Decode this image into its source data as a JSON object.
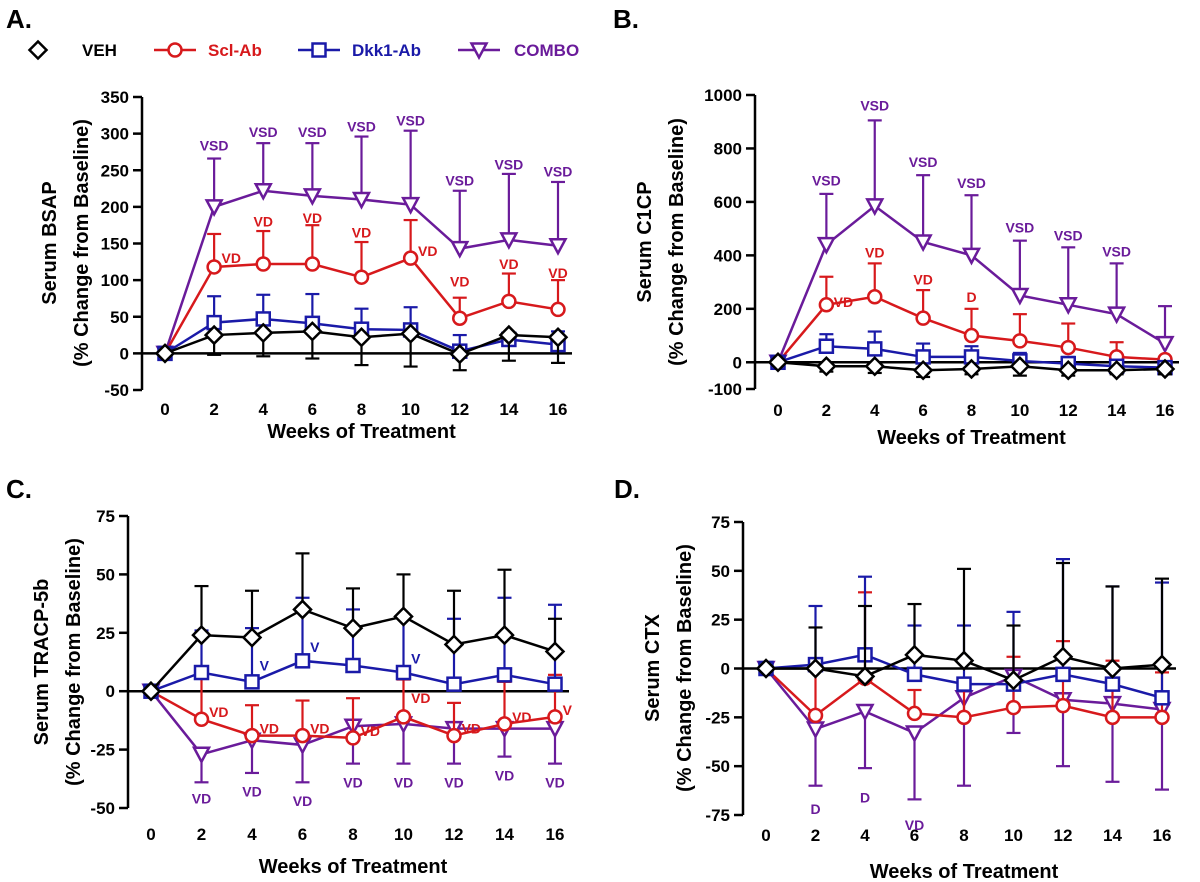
{
  "figure": {
    "legend": [
      {
        "name": "VEH",
        "color": "#000000",
        "marker": "diamond"
      },
      {
        "name": "Scl-Ab",
        "color": "#d7191c",
        "marker": "circle"
      },
      {
        "name": "Dkk1-Ab",
        "color": "#1a1aa8",
        "marker": "square"
      },
      {
        "name": "COMBO",
        "color": "#6a1b9a",
        "marker": "triangle-down"
      }
    ]
  },
  "chart_data": [
    {
      "id": "A",
      "panel_label": "A.",
      "type": "line",
      "xlabel": "Weeks of Treatment",
      "ylabel": [
        "Serum BSAP",
        "(% Change from Baseline)"
      ],
      "x": [
        0,
        2,
        4,
        6,
        8,
        10,
        12,
        14,
        16
      ],
      "ylim": [
        -50,
        350
      ],
      "yticks": [
        -50,
        0,
        50,
        100,
        150,
        200,
        250,
        300,
        350
      ],
      "series": [
        {
          "name": "VEH",
          "values": [
            0,
            25,
            28,
            30,
            22,
            27,
            -1,
            25,
            22
          ],
          "errors": [
            0,
            27,
            32,
            37,
            38,
            45,
            22,
            35,
            35
          ],
          "error_dir": "down"
        },
        {
          "name": "Scl-Ab",
          "values": [
            0,
            118,
            122,
            122,
            104,
            130,
            48,
            71,
            60
          ],
          "errors": [
            0,
            45,
            45,
            53,
            48,
            52,
            28,
            38,
            40
          ],
          "error_dir": "up"
        },
        {
          "name": "Dkk1-Ab",
          "values": [
            0,
            42,
            47,
            41,
            33,
            32,
            3,
            19,
            12
          ],
          "errors": [
            0,
            36,
            33,
            40,
            28,
            31,
            22,
            8,
            18
          ],
          "error_dir": "up"
        },
        {
          "name": "COMBO",
          "values": [
            0,
            200,
            222,
            215,
            210,
            203,
            143,
            155,
            147
          ],
          "errors": [
            0,
            66,
            65,
            72,
            86,
            101,
            79,
            90,
            87
          ],
          "error_dir": "up"
        }
      ],
      "annotations": [
        {
          "text": "VSD",
          "x": 2,
          "y": 284,
          "series": "COMBO",
          "align": "middle"
        },
        {
          "text": "VSD",
          "x": 4,
          "y": 302,
          "series": "COMBO",
          "align": "middle"
        },
        {
          "text": "VSD",
          "x": 6,
          "y": 302,
          "series": "COMBO",
          "align": "middle"
        },
        {
          "text": "VSD",
          "x": 8,
          "y": 310,
          "series": "COMBO",
          "align": "middle"
        },
        {
          "text": "VSD",
          "x": 10,
          "y": 318,
          "series": "COMBO",
          "align": "middle"
        },
        {
          "text": "VSD",
          "x": 12,
          "y": 236,
          "series": "COMBO",
          "align": "middle"
        },
        {
          "text": "VSD",
          "x": 14,
          "y": 258,
          "series": "COMBO",
          "align": "middle"
        },
        {
          "text": "VSD",
          "x": 16,
          "y": 248,
          "series": "COMBO",
          "align": "middle"
        },
        {
          "text": "VD",
          "x": 2.3,
          "y": 130,
          "series": "Scl-Ab",
          "align": "start"
        },
        {
          "text": "VD",
          "x": 4,
          "y": 180,
          "series": "Scl-Ab",
          "align": "middle"
        },
        {
          "text": "VD",
          "x": 6,
          "y": 185,
          "series": "Scl-Ab",
          "align": "middle"
        },
        {
          "text": "VD",
          "x": 8,
          "y": 165,
          "series": "Scl-Ab",
          "align": "middle"
        },
        {
          "text": "VD",
          "x": 10.3,
          "y": 140,
          "series": "Scl-Ab",
          "align": "start"
        },
        {
          "text": "VD",
          "x": 12,
          "y": 98,
          "series": "Scl-Ab",
          "align": "middle"
        },
        {
          "text": "VD",
          "x": 14,
          "y": 122,
          "series": "Scl-Ab",
          "align": "middle"
        },
        {
          "text": "VD",
          "x": 16,
          "y": 110,
          "series": "Scl-Ab",
          "align": "middle"
        }
      ]
    },
    {
      "id": "B",
      "panel_label": "B.",
      "type": "line",
      "xlabel": "Weeks of Treatment",
      "ylabel": [
        "Serum C1CP",
        "(% Change from Baseline)"
      ],
      "x": [
        0,
        2,
        4,
        6,
        8,
        10,
        12,
        14,
        16
      ],
      "ylim": [
        -100,
        1000
      ],
      "yticks": [
        -100,
        0,
        200,
        400,
        600,
        800,
        1000
      ],
      "series": [
        {
          "name": "VEH",
          "values": [
            0,
            -15,
            -15,
            -30,
            -25,
            -15,
            -30,
            -30,
            -25
          ],
          "errors": [
            0,
            20,
            25,
            25,
            20,
            35,
            20,
            15,
            20
          ],
          "error_dir": "down"
        },
        {
          "name": "Scl-Ab",
          "values": [
            0,
            215,
            245,
            165,
            100,
            80,
            55,
            20,
            10
          ],
          "errors": [
            0,
            105,
            125,
            105,
            100,
            100,
            90,
            55,
            0
          ],
          "error_dir": "up"
        },
        {
          "name": "Dkk1-Ab",
          "values": [
            0,
            60,
            50,
            20,
            20,
            5,
            -5,
            -15,
            -20
          ],
          "errors": [
            0,
            45,
            65,
            50,
            40,
            30,
            25,
            10,
            0
          ],
          "error_dir": "up"
        },
        {
          "name": "COMBO",
          "values": [
            0,
            440,
            585,
            450,
            400,
            250,
            215,
            180,
            70
          ],
          "errors": [
            0,
            190,
            320,
            250,
            225,
            205,
            215,
            190,
            140
          ],
          "error_dir": "up"
        }
      ],
      "annotations": [
        {
          "text": "VSD",
          "x": 2,
          "y": 680,
          "series": "COMBO",
          "align": "middle"
        },
        {
          "text": "VSD",
          "x": 4,
          "y": 960,
          "series": "COMBO",
          "align": "middle"
        },
        {
          "text": "VSD",
          "x": 6,
          "y": 750,
          "series": "COMBO",
          "align": "middle"
        },
        {
          "text": "VSD",
          "x": 8,
          "y": 670,
          "series": "COMBO",
          "align": "middle"
        },
        {
          "text": "VSD",
          "x": 10,
          "y": 505,
          "series": "COMBO",
          "align": "middle"
        },
        {
          "text": "VSD",
          "x": 12,
          "y": 475,
          "series": "COMBO",
          "align": "middle"
        },
        {
          "text": "VSD",
          "x": 14,
          "y": 415,
          "series": "COMBO",
          "align": "middle"
        },
        {
          "text": "VD",
          "x": 2.3,
          "y": 225,
          "series": "Scl-Ab",
          "align": "start"
        },
        {
          "text": "VD",
          "x": 4,
          "y": 410,
          "series": "Scl-Ab",
          "align": "middle"
        },
        {
          "text": "VD",
          "x": 6,
          "y": 310,
          "series": "Scl-Ab",
          "align": "middle"
        },
        {
          "text": "D",
          "x": 8,
          "y": 245,
          "series": "Scl-Ab",
          "align": "middle"
        }
      ]
    },
    {
      "id": "C",
      "panel_label": "C.",
      "type": "line",
      "xlabel": "Weeks of Treatment",
      "ylabel": [
        "Serum TRACP-5b",
        "(% Change from Baseline)"
      ],
      "x": [
        0,
        2,
        4,
        6,
        8,
        10,
        12,
        14,
        16
      ],
      "ylim": [
        -50,
        75
      ],
      "yticks": [
        -50,
        -25,
        0,
        25,
        50,
        75
      ],
      "series": [
        {
          "name": "VEH",
          "values": [
            0,
            24,
            23,
            35,
            27,
            32,
            20,
            24,
            17
          ],
          "errors": [
            0,
            21,
            20,
            24,
            17,
            18,
            23,
            28,
            14
          ],
          "error_dir": "up"
        },
        {
          "name": "Scl-Ab",
          "values": [
            0,
            -12,
            -19,
            -19,
            -20,
            -11,
            -19,
            -14,
            -11
          ],
          "errors": [
            0,
            20,
            13,
            15,
            17,
            16,
            14,
            18,
            18
          ],
          "error_dir": "up"
        },
        {
          "name": "Dkk1-Ab",
          "values": [
            0,
            8,
            4,
            13,
            11,
            8,
            3,
            7,
            3
          ],
          "errors": [
            0,
            18,
            23,
            27,
            24,
            23,
            28,
            33,
            34
          ],
          "error_dir": "up"
        },
        {
          "name": "COMBO",
          "values": [
            0,
            -27,
            -21,
            -23,
            -15,
            -14,
            -16,
            -16,
            -16
          ],
          "errors": [
            0,
            12,
            14,
            16,
            16,
            17,
            15,
            12,
            15
          ],
          "error_dir": "down"
        }
      ],
      "annotations": [
        {
          "text": "VD",
          "x": 2.3,
          "y": -9,
          "series": "Scl-Ab",
          "align": "start"
        },
        {
          "text": "VD",
          "x": 4.3,
          "y": -16,
          "series": "Scl-Ab",
          "align": "start"
        },
        {
          "text": "VD",
          "x": 6.3,
          "y": -16,
          "series": "Scl-Ab",
          "align": "start"
        },
        {
          "text": "VD",
          "x": 8.3,
          "y": -17,
          "series": "Scl-Ab",
          "align": "start"
        },
        {
          "text": "VD",
          "x": 10.3,
          "y": -3,
          "series": "Scl-Ab",
          "align": "start"
        },
        {
          "text": "VD",
          "x": 12.3,
          "y": -16,
          "series": "Scl-Ab",
          "align": "start"
        },
        {
          "text": "VD",
          "x": 14.3,
          "y": -11,
          "series": "Scl-Ab",
          "align": "start"
        },
        {
          "text": "V",
          "x": 16.3,
          "y": -8,
          "series": "Scl-Ab",
          "align": "start"
        },
        {
          "text": "V",
          "x": 4.3,
          "y": 11,
          "series": "Dkk1-Ab",
          "align": "start"
        },
        {
          "text": "V",
          "x": 6.3,
          "y": 19,
          "series": "Dkk1-Ab",
          "align": "start"
        },
        {
          "text": "V",
          "x": 10.3,
          "y": 14,
          "series": "Dkk1-Ab",
          "align": "start"
        },
        {
          "text": "VD",
          "x": 2,
          "y": -46,
          "series": "COMBO",
          "align": "middle"
        },
        {
          "text": "VD",
          "x": 4,
          "y": -43,
          "series": "COMBO",
          "align": "middle"
        },
        {
          "text": "VD",
          "x": 6,
          "y": -47,
          "series": "COMBO",
          "align": "middle"
        },
        {
          "text": "VD",
          "x": 8,
          "y": -39,
          "series": "COMBO",
          "align": "middle"
        },
        {
          "text": "VD",
          "x": 10,
          "y": -39,
          "series": "COMBO",
          "align": "middle"
        },
        {
          "text": "VD",
          "x": 12,
          "y": -39,
          "series": "COMBO",
          "align": "middle"
        },
        {
          "text": "VD",
          "x": 14,
          "y": -36,
          "series": "COMBO",
          "align": "middle"
        },
        {
          "text": "VD",
          "x": 16,
          "y": -39,
          "series": "COMBO",
          "align": "middle"
        }
      ]
    },
    {
      "id": "D",
      "panel_label": "D.",
      "type": "line",
      "xlabel": "Weeks of Treatment",
      "ylabel": [
        "Serum CTX",
        "(% Change from Baseline)"
      ],
      "x": [
        0,
        2,
        4,
        6,
        8,
        10,
        12,
        14,
        16
      ],
      "ylim": [
        -75,
        75
      ],
      "yticks": [
        -75,
        -50,
        -25,
        0,
        25,
        50,
        75
      ],
      "series": [
        {
          "name": "VEH",
          "values": [
            0,
            0,
            -4,
            7,
            4,
            -6,
            6,
            0,
            2
          ],
          "errors": [
            0,
            21,
            36,
            26,
            47,
            28,
            48,
            42,
            44
          ],
          "error_dir": "up"
        },
        {
          "name": "Scl-Ab",
          "values": [
            0,
            -24,
            -5,
            -23,
            -25,
            -20,
            -19,
            -25,
            -25
          ],
          "errors": [
            0,
            24,
            44,
            12,
            18,
            26,
            33,
            29,
            23
          ],
          "error_dir": "up"
        },
        {
          "name": "Dkk1-Ab",
          "values": [
            0,
            2,
            7,
            -3,
            -8,
            -8,
            -3,
            -8,
            -15
          ],
          "errors": [
            0,
            30,
            40,
            25,
            30,
            37,
            59,
            50,
            59
          ],
          "error_dir": "up"
        },
        {
          "name": "COMBO",
          "values": [
            0,
            -31,
            -22,
            -33,
            -15,
            -4,
            -16,
            -18,
            -21
          ],
          "errors": [
            0,
            29,
            29,
            34,
            45,
            29,
            34,
            40,
            41
          ],
          "error_dir": "down"
        }
      ],
      "annotations": [
        {
          "text": "D",
          "x": 2,
          "y": -72,
          "series": "COMBO",
          "align": "middle"
        },
        {
          "text": "D",
          "x": 4,
          "y": -66,
          "series": "COMBO",
          "align": "middle"
        },
        {
          "text": "VD",
          "x": 6,
          "y": -80,
          "series": "COMBO",
          "align": "middle"
        }
      ]
    }
  ]
}
